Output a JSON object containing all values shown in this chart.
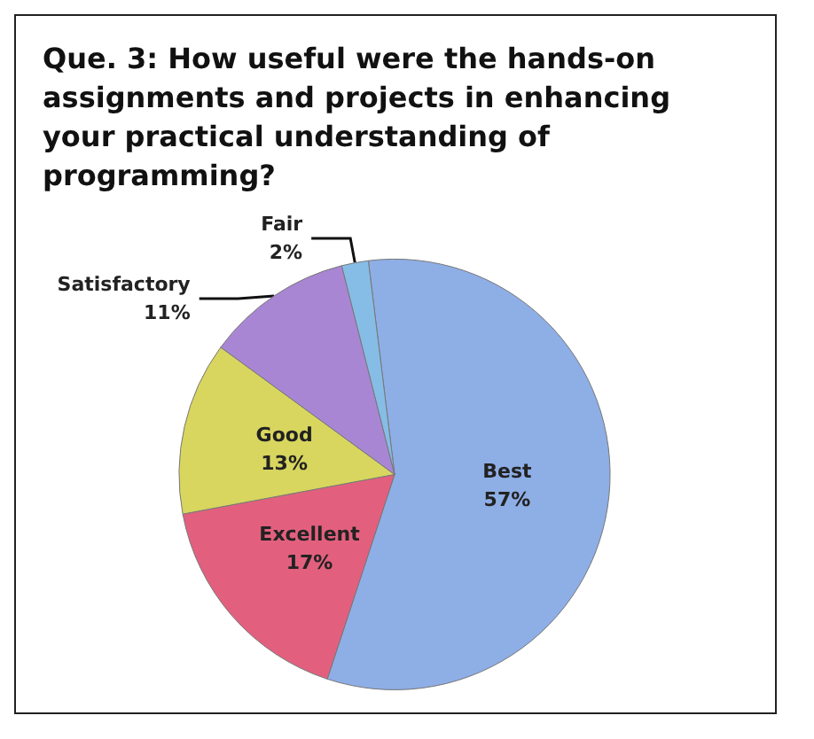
{
  "chart_data": {
    "type": "pie",
    "title": "Que. 3: How useful were the hands-on assignments and projects in enhancing your practical understanding of programming?",
    "categories": [
      "Best",
      "Excellent",
      "Good",
      "Satisfactory",
      "Fair"
    ],
    "values": [
      57,
      17,
      13,
      11,
      2
    ],
    "value_labels": [
      "57%",
      "17%",
      "13%",
      "11%",
      "2%"
    ],
    "colors": [
      "#8eaee6",
      "#e2607e",
      "#d8d65e",
      "#a986d4",
      "#86bde6"
    ],
    "legend": false
  }
}
